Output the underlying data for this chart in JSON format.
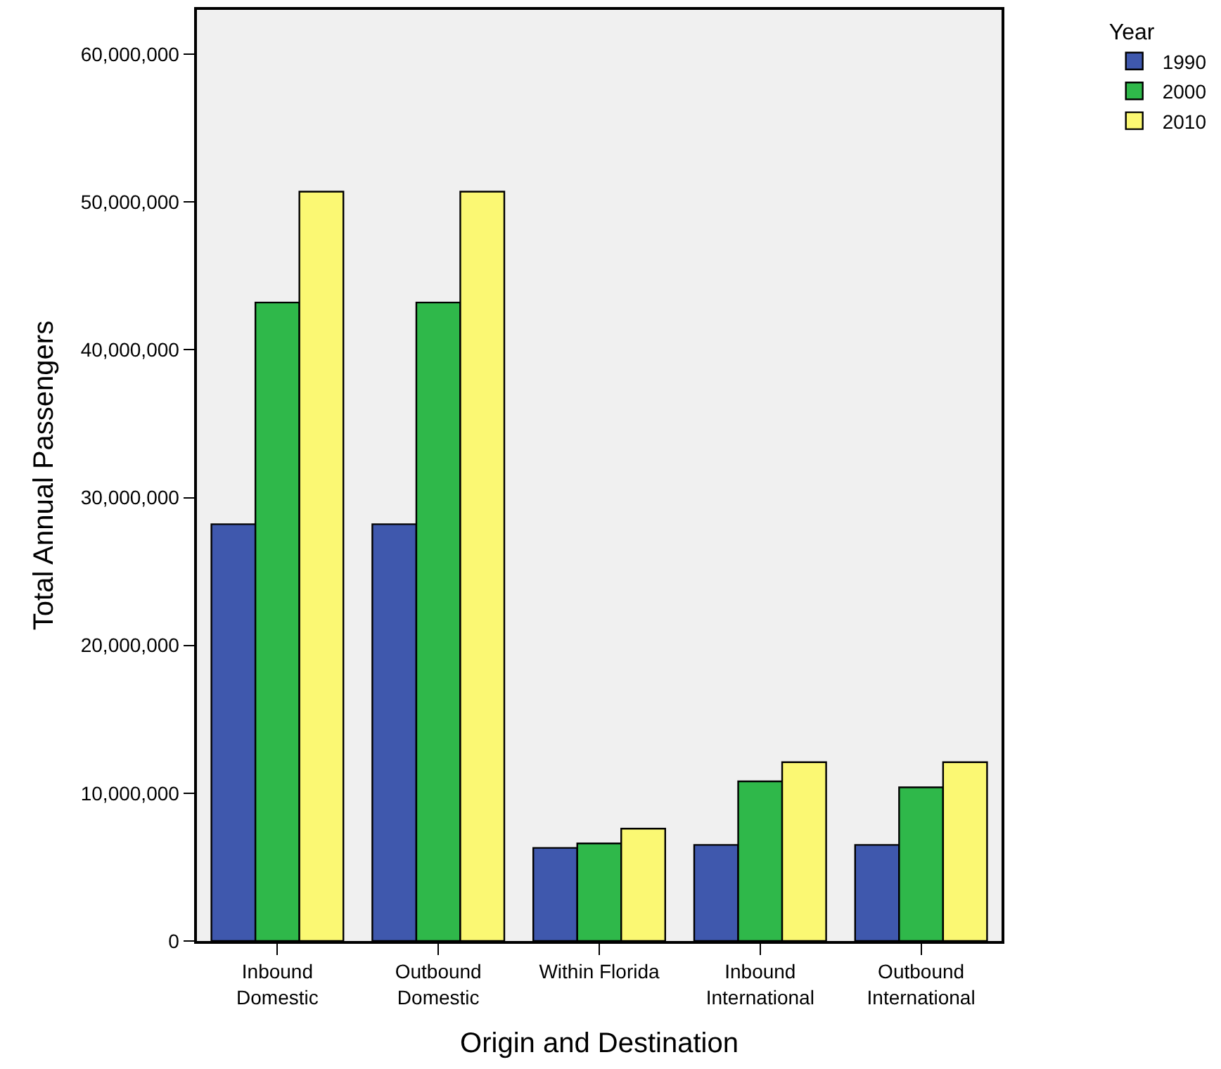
{
  "chart_data": {
    "type": "bar",
    "xlabel": "Origin and Destination",
    "ylabel": "Total Annual Passengers",
    "legend_title": "Year",
    "categories": [
      "Inbound Domestic",
      "Outbound Domestic",
      "Within Florida",
      "Inbound International",
      "Outbound International"
    ],
    "series": [
      {
        "name": "1990",
        "color": "#3f58ad",
        "values": [
          28200000,
          28200000,
          6300000,
          6500000,
          6500000
        ]
      },
      {
        "name": "2000",
        "color": "#2fb84a",
        "values": [
          43200000,
          43200000,
          6600000,
          10800000,
          10400000
        ]
      },
      {
        "name": "2010",
        "color": "#fbf873",
        "values": [
          50700000,
          50700000,
          7600000,
          12100000,
          12100000
        ]
      }
    ],
    "ylim": [
      0,
      63000000
    ],
    "yticks": [
      {
        "value": 0,
        "label": "0"
      },
      {
        "value": 10000000,
        "label": "10,000,000"
      },
      {
        "value": 20000000,
        "label": "20,000,000"
      },
      {
        "value": 30000000,
        "label": "30,000,000"
      },
      {
        "value": 40000000,
        "label": "40,000,000"
      },
      {
        "value": 50000000,
        "label": "50,000,000"
      },
      {
        "value": 60000000,
        "label": "60,000,000"
      }
    ],
    "grid": false,
    "legend": "top right"
  }
}
